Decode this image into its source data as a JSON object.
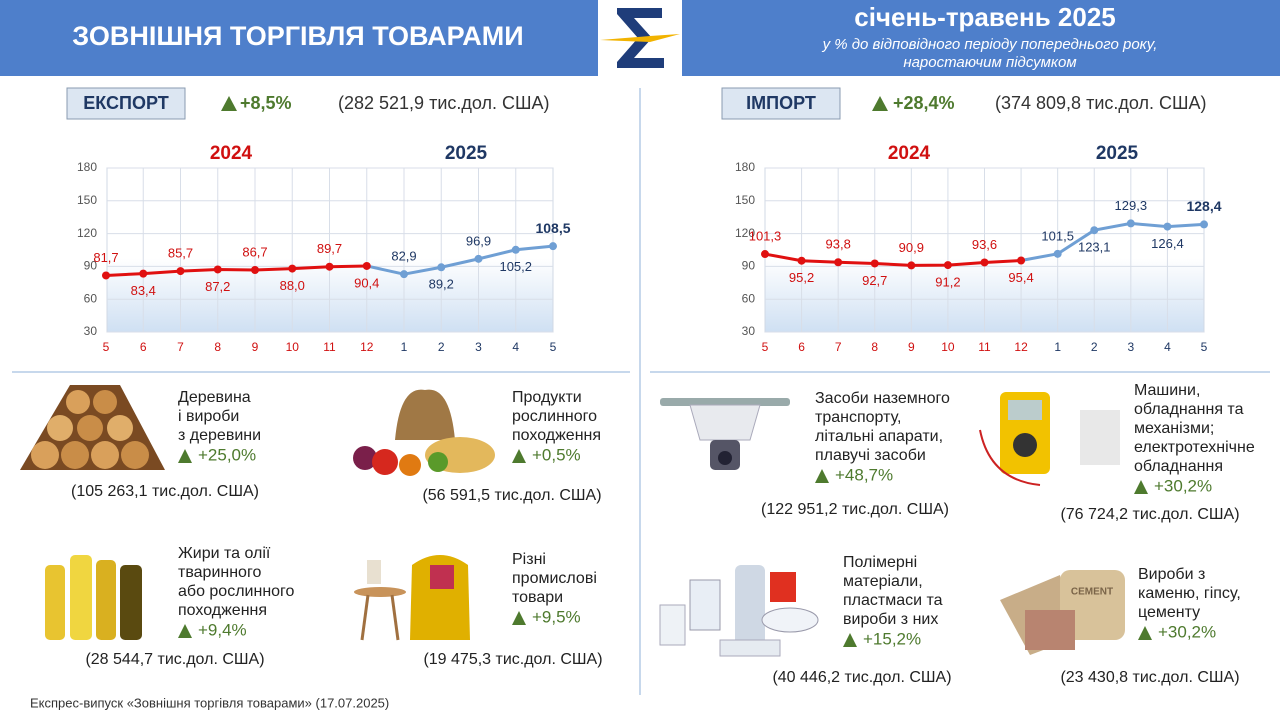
{
  "header": {
    "title": "ЗОВНІШНЯ ТОРГІВЛЯ ТОВАРАМИ",
    "period": "січень-травень 2025",
    "subtitle": [
      "у % до відповідного періоду попереднього року,",
      "наростаючим підсумком"
    ]
  },
  "export": {
    "label": "ЕКСПОРТ",
    "change": "+8,5%",
    "amount": "(282 521,9 тис.дол. США)",
    "goods": [
      {
        "name": [
          "Деревина",
          "і вироби",
          "з деревини"
        ],
        "change": "+25,0%",
        "amount": "(105 263,1 тис.дол. США)"
      },
      {
        "name": [
          "Продукти",
          "рослинного",
          "походження"
        ],
        "change": "+0,5%",
        "amount": "(56 591,5 тис.дол. США)"
      },
      {
        "name": [
          "Жири та олії",
          "тваринного",
          "або рослинного",
          "походження"
        ],
        "change": "+9,4%",
        "amount": "(28 544,7 тис.дол. США)"
      },
      {
        "name": [
          "Різні",
          "промислові",
          "товари"
        ],
        "change": "+9,5%",
        "amount": "(19 475,3 тис.дол. США)"
      }
    ]
  },
  "import": {
    "label": "ІМПОРТ",
    "change": "+28,4%",
    "amount": "(374 809,8 тис.дол. США)",
    "goods": [
      {
        "name": [
          "Засоби наземного",
          "транспорту,",
          "літальні апарати,",
          "плавучі засоби"
        ],
        "change": "+48,7%",
        "amount": "(122 951,2 тис.дол. США)"
      },
      {
        "name": [
          "Машини,",
          "обладнання та",
          "механізми;",
          "електротехнічне",
          "обладнання"
        ],
        "change": "+30,2%",
        "amount": "(76 724,2 тис.дол. США)"
      },
      {
        "name": [
          "Полімерні",
          "матеріали,",
          "пластмаси та",
          "вироби з них"
        ],
        "change": "+15,2%",
        "amount": "(40 446,2 тис.дол. США)"
      },
      {
        "name": [
          "Вироби з",
          "каменю, гіпсу,",
          "цементу"
        ],
        "change": "+30,2%",
        "amount": "(23 430,8 тис.дол. США)"
      }
    ]
  },
  "chart_data": [
    {
      "type": "line",
      "categories": [
        "5",
        "6",
        "7",
        "8",
        "9",
        "10",
        "11",
        "12",
        "1",
        "2",
        "3",
        "4",
        "5"
      ],
      "series": [
        {
          "name": "2024",
          "color": "#e01010",
          "label_color": "#d01010",
          "values": [
            81.7,
            83.4,
            85.7,
            87.2,
            86.7,
            88.0,
            89.7,
            90.4,
            null,
            null,
            null,
            null,
            null
          ],
          "value_labels": [
            "81,7",
            "83,4",
            "85,7",
            "87,2",
            "86,7",
            "88,0",
            "89,7",
            "90,4",
            null,
            null,
            null,
            null,
            null
          ]
        },
        {
          "name": "2025",
          "color": "#6f9fd4",
          "label_color": "#1f3864",
          "values": [
            null,
            null,
            null,
            null,
            null,
            null,
            null,
            null,
            82.9,
            89.2,
            96.9,
            105.2,
            108.5
          ],
          "value_labels": [
            null,
            null,
            null,
            null,
            null,
            null,
            null,
            null,
            "82,9",
            "89,2",
            "96,9",
            "105,2",
            "108,5"
          ]
        }
      ],
      "ylim": [
        30,
        180
      ],
      "yticks": [
        30,
        60,
        90,
        120,
        150,
        180
      ],
      "grid": true
    },
    {
      "type": "line",
      "categories": [
        "5",
        "6",
        "7",
        "8",
        "9",
        "10",
        "11",
        "12",
        "1",
        "2",
        "3",
        "4",
        "5"
      ],
      "series": [
        {
          "name": "2024",
          "color": "#e01010",
          "label_color": "#d01010",
          "values": [
            101.3,
            95.2,
            93.8,
            92.7,
            90.9,
            91.2,
            93.6,
            95.4,
            null,
            null,
            null,
            null,
            null
          ],
          "value_labels": [
            "101,3",
            "95,2",
            "93,8",
            "92,7",
            "90,9",
            "91,2",
            "93,6",
            "95,4",
            null,
            null,
            null,
            null,
            null
          ]
        },
        {
          "name": "2025",
          "color": "#6f9fd4",
          "label_color": "#1f3864",
          "values": [
            null,
            null,
            null,
            null,
            null,
            null,
            null,
            null,
            101.5,
            123.1,
            129.3,
            126.4,
            128.4
          ],
          "value_labels": [
            null,
            null,
            null,
            null,
            null,
            null,
            null,
            null,
            "101,5",
            "123,1",
            "129,3",
            "126,4",
            "128,4"
          ]
        }
      ],
      "ylim": [
        30,
        180
      ],
      "yticks": [
        30,
        60,
        90,
        120,
        150,
        180
      ],
      "grid": true
    }
  ],
  "footer": "Експрес-випуск «Зовнішня торгівля товарами» (17.07.2025)"
}
